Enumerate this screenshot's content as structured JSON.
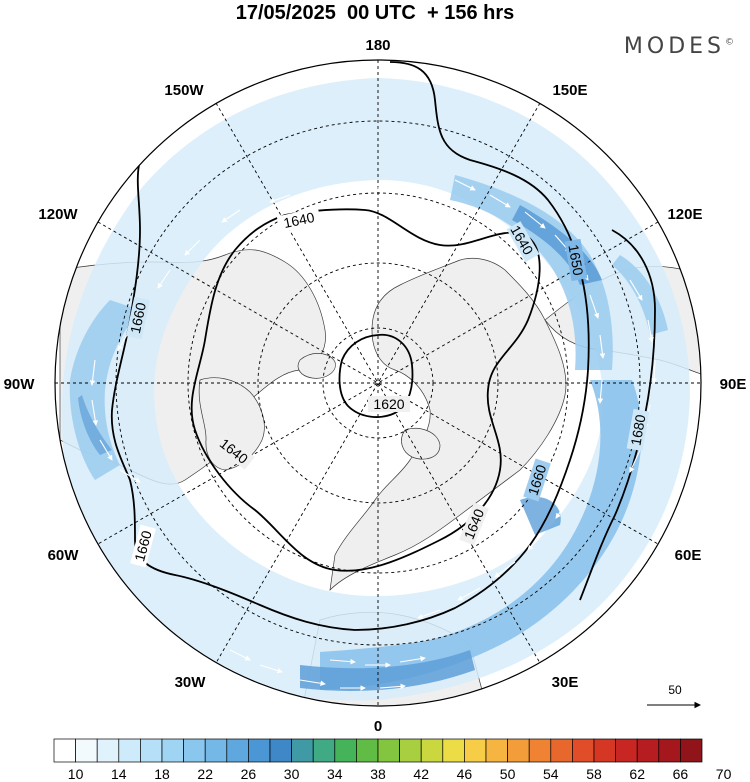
{
  "title": "17/05/2025  00 UTC  + 156 hrs",
  "brand": "MODES",
  "brand_mark": "©",
  "longitude_labels": {
    "n180": "180",
    "e150": "150E",
    "e120": "120E",
    "e90": "90E",
    "e60": "60E",
    "e30": "30E",
    "s0": "0",
    "w30": "30W",
    "w60": "60W",
    "w90": "90W",
    "w120": "120W",
    "w150": "150W"
  },
  "contour_labels": [
    "1620",
    "1640",
    "1640",
    "1640",
    "1640",
    "1650",
    "1660",
    "1660",
    "1660",
    "1680"
  ],
  "reference_vector": {
    "value": "50"
  },
  "colorbar": {
    "tick_labels": [
      "10",
      "14",
      "18",
      "22",
      "26",
      "30",
      "34",
      "38",
      "42",
      "46",
      "50",
      "54",
      "58",
      "62",
      "66",
      "70"
    ],
    "colors": [
      "#ffffff",
      "#f2fafe",
      "#e0f3fc",
      "#cdebfa",
      "#b6e0f7",
      "#9fd4f3",
      "#8ac7ee",
      "#74b8e7",
      "#5fa8df",
      "#4b97d6",
      "#3f88c8",
      "#3f9aa6",
      "#3faa84",
      "#45b35a",
      "#61bc45",
      "#84c53f",
      "#a8cf3f",
      "#cbd73f",
      "#ecdc45",
      "#f7cc47",
      "#f6b540",
      "#f39c3a",
      "#ef8233",
      "#e8672d",
      "#e04d28",
      "#d63624",
      "#c82622",
      "#b61d20",
      "#a3171d",
      "#90141a"
    ]
  },
  "colors": {
    "land": "#f0f0f0",
    "ocean": "#ffffff",
    "contour": "#000000",
    "jet_light": "#cfe8f8",
    "jet_mid": "#9ccbee",
    "jet_core": "#5e9fd8"
  }
}
